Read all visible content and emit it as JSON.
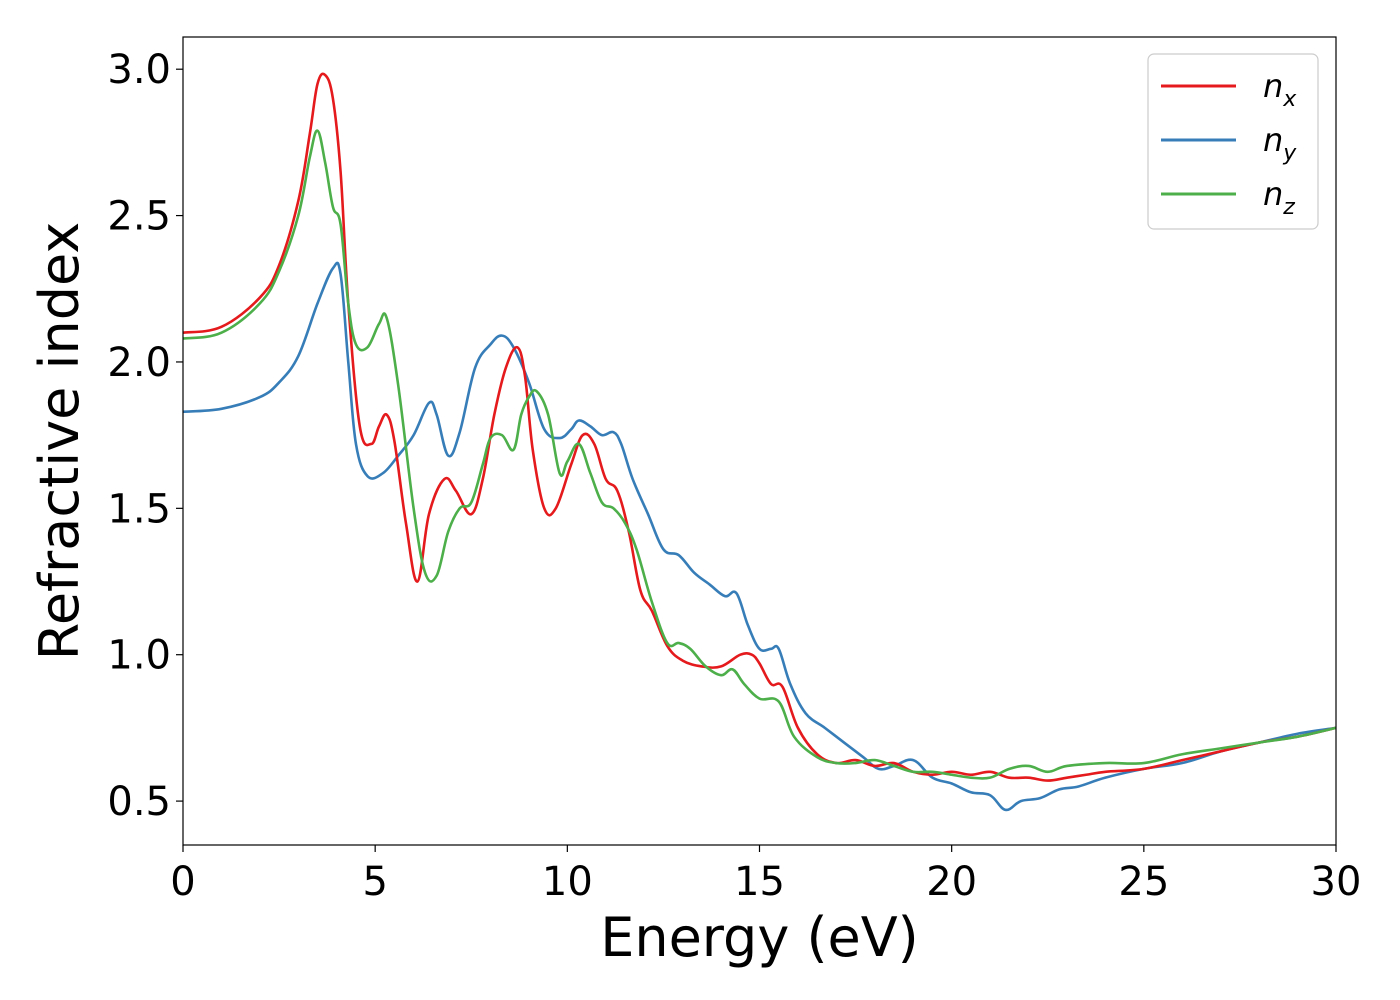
{
  "chart_data": {
    "type": "line",
    "title": "",
    "xlabel": "Energy (eV)",
    "ylabel": "Refractive index",
    "xlim": [
      0,
      30
    ],
    "ylim": [
      0.35,
      3.11
    ],
    "xticks": [
      0,
      5,
      10,
      15,
      20,
      25,
      30
    ],
    "xtick_labels": [
      "0",
      "5",
      "10",
      "15",
      "20",
      "25",
      "30"
    ],
    "yticks": [
      0.5,
      1.0,
      1.5,
      2.0,
      2.5,
      3.0
    ],
    "ytick_labels": [
      "0.5",
      "1.0",
      "1.5",
      "2.0",
      "2.5",
      "3.0"
    ],
    "grid": false,
    "legend_position": "top-right",
    "series": [
      {
        "name": "n",
        "subscript": "x",
        "color": "#e41a1c",
        "x": [
          0,
          1,
          2,
          2.5,
          3,
          3.3,
          3.5,
          3.7,
          3.9,
          4.1,
          4.3,
          4.6,
          4.9,
          5.1,
          5.3,
          5.5,
          5.8,
          6.1,
          6.4,
          6.8,
          7.1,
          7.5,
          7.8,
          8.1,
          8.4,
          8.7,
          8.9,
          9.1,
          9.4,
          9.7,
          10.1,
          10.4,
          10.7,
          11.0,
          11.3,
          11.6,
          11.9,
          12.2,
          12.6,
          13.0,
          13.5,
          14.0,
          14.5,
          14.8,
          15.0,
          15.3,
          15.6,
          16.0,
          16.5,
          17.0,
          17.5,
          18.0,
          18.5,
          19.0,
          19.5,
          20.0,
          20.5,
          21.0,
          21.5,
          22.0,
          22.5,
          23.0,
          23.5,
          24.0,
          25.0,
          26.0,
          27.0,
          28.0,
          29.0,
          30.0
        ],
        "y": [
          2.1,
          2.12,
          2.22,
          2.33,
          2.55,
          2.78,
          2.95,
          2.98,
          2.9,
          2.65,
          2.2,
          1.78,
          1.72,
          1.78,
          1.82,
          1.73,
          1.45,
          1.25,
          1.48,
          1.6,
          1.56,
          1.48,
          1.6,
          1.82,
          1.98,
          2.05,
          1.95,
          1.7,
          1.5,
          1.5,
          1.65,
          1.75,
          1.72,
          1.6,
          1.56,
          1.42,
          1.22,
          1.15,
          1.03,
          0.98,
          0.96,
          0.96,
          1.0,
          1.0,
          0.97,
          0.9,
          0.89,
          0.75,
          0.66,
          0.63,
          0.64,
          0.62,
          0.63,
          0.6,
          0.59,
          0.6,
          0.59,
          0.6,
          0.58,
          0.58,
          0.57,
          0.58,
          0.59,
          0.6,
          0.61,
          0.64,
          0.67,
          0.7,
          0.72,
          0.75
        ]
      },
      {
        "name": "n",
        "subscript": "y",
        "color": "#377eb8",
        "x": [
          0,
          1,
          2,
          2.5,
          3,
          3.5,
          3.9,
          4.1,
          4.3,
          4.5,
          4.8,
          5.2,
          5.6,
          6.0,
          6.4,
          6.6,
          6.9,
          7.2,
          7.6,
          8.0,
          8.3,
          8.6,
          9.0,
          9.4,
          9.8,
          10.1,
          10.3,
          10.6,
          10.9,
          11.2,
          11.4,
          11.7,
          12.1,
          12.5,
          12.9,
          13.3,
          13.7,
          14.1,
          14.4,
          14.7,
          15.0,
          15.3,
          15.5,
          15.8,
          16.2,
          16.7,
          17.2,
          17.7,
          18.1,
          18.5,
          19.0,
          19.5,
          20.0,
          20.5,
          21.0,
          21.4,
          21.8,
          22.3,
          22.8,
          23.3,
          24.0,
          25.0,
          26.0,
          27.0,
          28.0,
          29.0,
          30.0
        ],
        "y": [
          1.83,
          1.84,
          1.88,
          1.93,
          2.02,
          2.2,
          2.32,
          2.3,
          2.0,
          1.72,
          1.61,
          1.62,
          1.68,
          1.75,
          1.86,
          1.82,
          1.68,
          1.76,
          1.98,
          2.06,
          2.09,
          2.05,
          1.93,
          1.77,
          1.74,
          1.77,
          1.8,
          1.78,
          1.75,
          1.76,
          1.72,
          1.6,
          1.48,
          1.36,
          1.34,
          1.28,
          1.24,
          1.2,
          1.21,
          1.1,
          1.02,
          1.02,
          1.02,
          0.9,
          0.8,
          0.75,
          0.7,
          0.65,
          0.61,
          0.62,
          0.64,
          0.58,
          0.56,
          0.53,
          0.52,
          0.47,
          0.5,
          0.51,
          0.54,
          0.55,
          0.58,
          0.61,
          0.63,
          0.67,
          0.7,
          0.73,
          0.75
        ]
      },
      {
        "name": "n",
        "subscript": "z",
        "color": "#4daf4a",
        "x": [
          0,
          1,
          2,
          2.5,
          3,
          3.3,
          3.5,
          3.7,
          3.9,
          4.1,
          4.3,
          4.5,
          4.8,
          5.1,
          5.3,
          5.6,
          6.0,
          6.3,
          6.6,
          6.9,
          7.2,
          7.5,
          7.8,
          8.0,
          8.3,
          8.6,
          8.8,
          9.0,
          9.2,
          9.5,
          9.8,
          10.0,
          10.3,
          10.6,
          10.9,
          11.2,
          11.5,
          11.8,
          12.2,
          12.6,
          12.9,
          13.2,
          13.6,
          14.0,
          14.3,
          14.6,
          15.0,
          15.5,
          15.9,
          16.5,
          17.0,
          17.5,
          18.0,
          18.5,
          19.0,
          19.5,
          20.0,
          20.5,
          21.0,
          21.5,
          22.0,
          22.5,
          23.0,
          24.0,
          25.0,
          26.0,
          27.0,
          28.0,
          29.0,
          30.0
        ],
        "y": [
          2.08,
          2.1,
          2.2,
          2.31,
          2.5,
          2.7,
          2.79,
          2.68,
          2.53,
          2.47,
          2.2,
          2.06,
          2.05,
          2.13,
          2.15,
          1.92,
          1.5,
          1.28,
          1.27,
          1.42,
          1.5,
          1.52,
          1.65,
          1.74,
          1.75,
          1.7,
          1.82,
          1.88,
          1.9,
          1.82,
          1.62,
          1.66,
          1.72,
          1.62,
          1.52,
          1.5,
          1.45,
          1.36,
          1.18,
          1.04,
          1.04,
          1.02,
          0.96,
          0.93,
          0.95,
          0.9,
          0.85,
          0.84,
          0.72,
          0.65,
          0.63,
          0.63,
          0.64,
          0.62,
          0.6,
          0.6,
          0.59,
          0.58,
          0.58,
          0.61,
          0.62,
          0.6,
          0.62,
          0.63,
          0.63,
          0.66,
          0.68,
          0.7,
          0.72,
          0.75
        ]
      }
    ]
  }
}
